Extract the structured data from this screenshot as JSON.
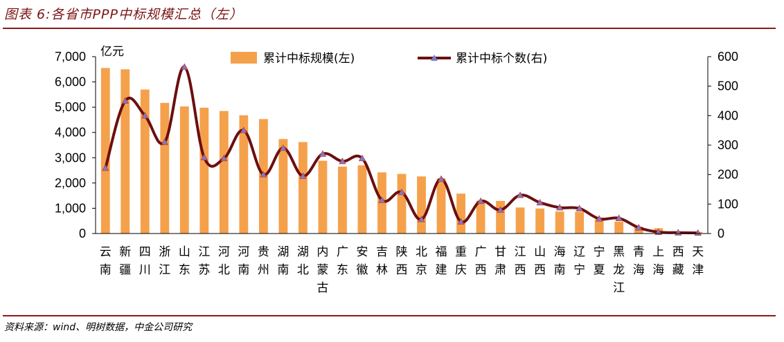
{
  "figure": {
    "title": "图表 6:各省市PPP中标规模汇总（左）",
    "source": "资料来源：wind、明树数据，中金公司研究"
  },
  "chart_data": {
    "type": "bar+line",
    "title": "图表 6:各省市PPP中标规模汇总（左）",
    "categories": [
      "云南",
      "新疆",
      "四川",
      "浙江",
      "山东",
      "江苏",
      "河北",
      "河南",
      "贵州",
      "湖南",
      "湖北",
      "内蒙古",
      "广东",
      "安徽",
      "吉林",
      "陕西",
      "北京",
      "福建",
      "重庆",
      "广西",
      "甘肃",
      "江西",
      "山西",
      "海南",
      "辽宁",
      "宁夏",
      "黑龙江",
      "青海",
      "上海",
      "西藏",
      "天津"
    ],
    "left_axis": {
      "unit_label": "亿元",
      "ylim": [
        0,
        7000
      ],
      "ticks": [
        "0",
        "1,000",
        "2,000",
        "3,000",
        "4,000",
        "5,000",
        "6,000",
        "7,000"
      ]
    },
    "right_axis": {
      "ylim": [
        0,
        600
      ],
      "ticks": [
        "0",
        "100",
        "200",
        "300",
        "400",
        "500",
        "600"
      ]
    },
    "series": [
      {
        "name": "累计中标规模(左)",
        "type": "bar",
        "axis": "left",
        "color": "#f5a14c",
        "values": [
          6550,
          6500,
          5700,
          5170,
          5030,
          4980,
          4850,
          4680,
          4530,
          3740,
          3620,
          2880,
          2650,
          2700,
          2420,
          2360,
          2260,
          2180,
          1580,
          1300,
          1290,
          1030,
          990,
          870,
          860,
          560,
          470,
          270,
          210,
          40,
          60
        ]
      },
      {
        "name": "累计中标个数(右)",
        "type": "line",
        "axis": "right",
        "color": "#6b0f0f",
        "marker_color": "#7b7bd0",
        "values": [
          222,
          450,
          400,
          310,
          565,
          258,
          255,
          350,
          200,
          290,
          195,
          270,
          245,
          255,
          113,
          140,
          48,
          185,
          40,
          110,
          80,
          130,
          105,
          88,
          85,
          50,
          52,
          20,
          5,
          3,
          2
        ]
      }
    ],
    "legend_position": "top",
    "grid": false
  }
}
